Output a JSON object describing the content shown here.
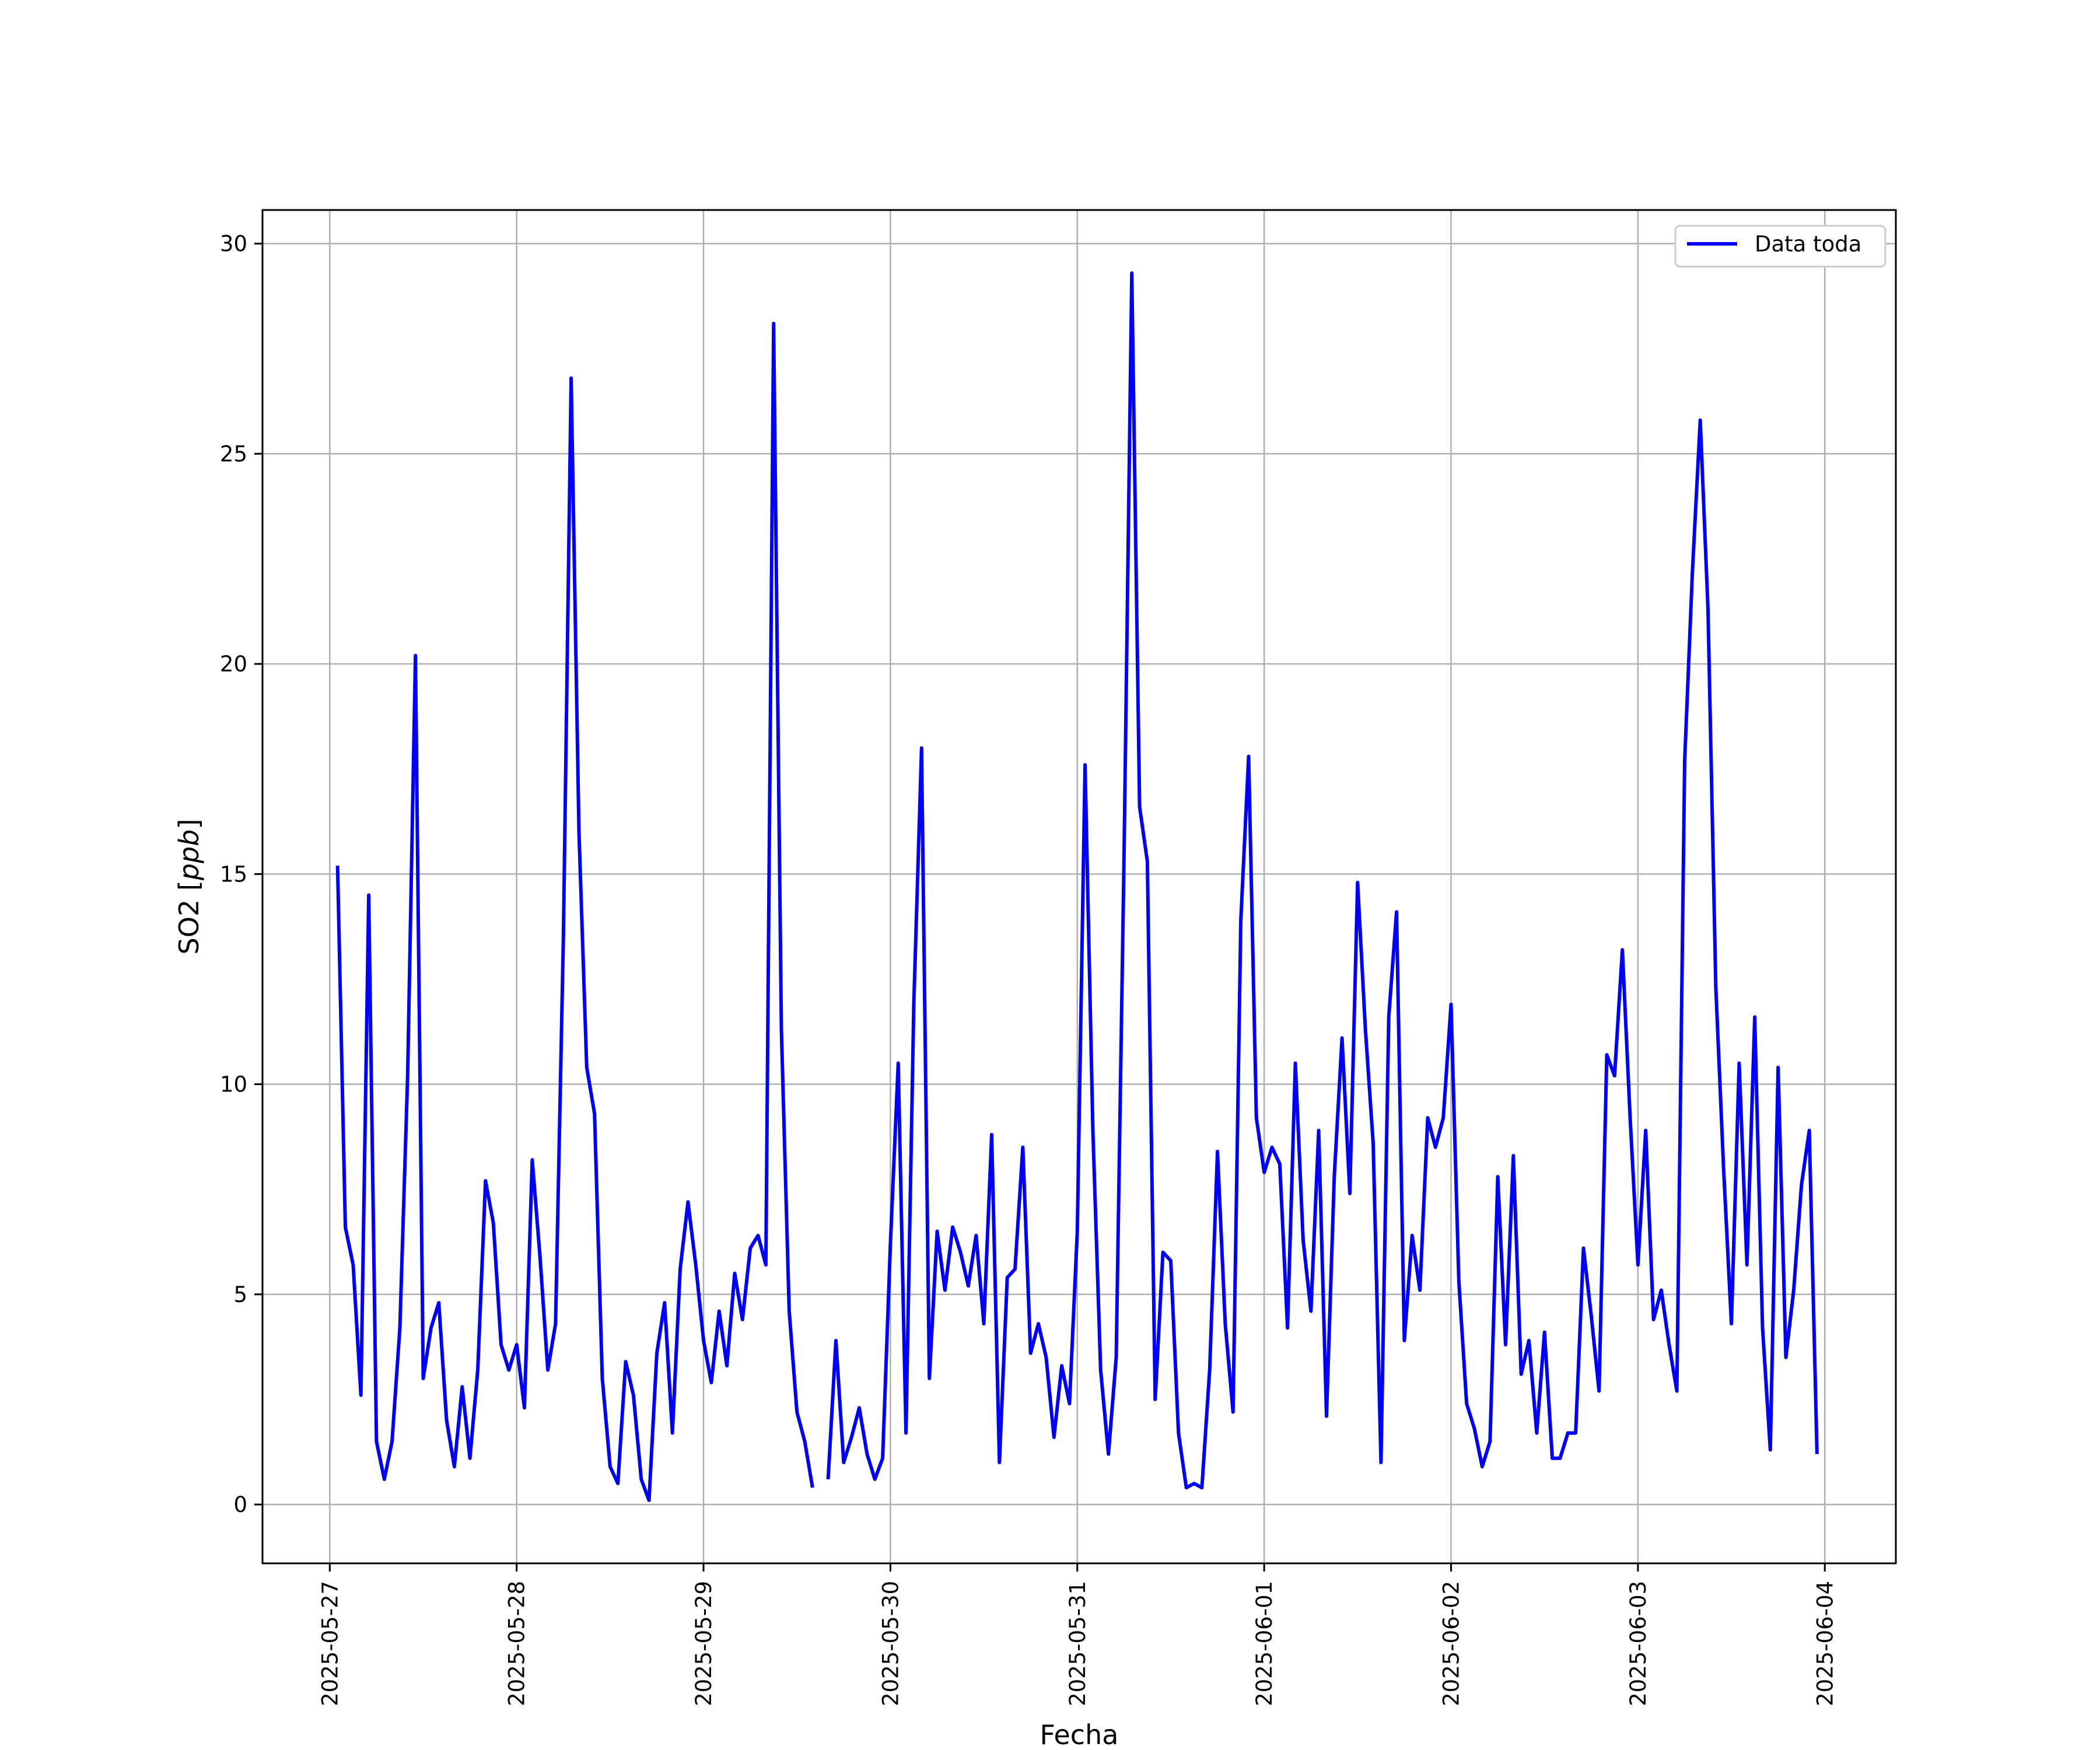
{
  "chart_data": {
    "type": "line",
    "title": "",
    "xlabel": "Fecha",
    "ylabel_main": "SO2",
    "ylabel_unit": "ppb",
    "x_ticks": [
      "2025-05-27",
      "2025-05-28",
      "2025-05-29",
      "2025-05-30",
      "2025-05-31",
      "2025-06-01",
      "2025-06-02",
      "2025-06-03",
      "2025-06-04"
    ],
    "y_ticks": [
      0,
      5,
      10,
      15,
      20,
      25,
      30
    ],
    "xlim_days": [
      -0.36,
      8.38
    ],
    "ylim": [
      -1.4,
      30.8
    ],
    "grid": true,
    "legend_position": "upper right",
    "series": [
      {
        "name": "Data toda",
        "color": "#0000ff",
        "start": "2025-05-27T01:00",
        "interval_hours": 1,
        "values": [
          15.2,
          6.6,
          5.7,
          2.6,
          14.5,
          1.5,
          0.6,
          1.5,
          4.2,
          10.2,
          20.2,
          3.0,
          4.2,
          4.8,
          2.0,
          0.9,
          2.8,
          1.1,
          3.2,
          7.7,
          6.7,
          3.8,
          3.2,
          3.8,
          2.3,
          8.2,
          5.9,
          3.2,
          4.3,
          13.5,
          26.8,
          16.0,
          10.4,
          9.3,
          3.0,
          0.9,
          0.5,
          3.4,
          2.6,
          0.6,
          0.1,
          3.6,
          4.8,
          1.7,
          5.6,
          7.2,
          5.7,
          3.9,
          2.9,
          4.6,
          3.3,
          5.5,
          4.4,
          6.1,
          6.4,
          5.7,
          28.1,
          11.3,
          4.6,
          2.2,
          1.5,
          0.4,
          null,
          0.6,
          3.9,
          1.0,
          1.6,
          2.3,
          1.2,
          0.6,
          1.1,
          6.2,
          10.5,
          1.7,
          11.9,
          18.0,
          3.0,
          6.5,
          5.1,
          6.6,
          6.0,
          5.2,
          6.4,
          4.3,
          8.8,
          1.0,
          5.4,
          5.6,
          8.5,
          3.6,
          4.3,
          3.5,
          1.6,
          3.3,
          2.4,
          6.5,
          17.6,
          8.9,
          3.2,
          1.2,
          3.5,
          15.4,
          29.3,
          16.6,
          15.3,
          2.5,
          6.0,
          5.8,
          1.7,
          0.4,
          0.5,
          0.4,
          3.2,
          8.4,
          4.3,
          2.2,
          13.9,
          17.8,
          9.2,
          7.9,
          8.5,
          8.1,
          4.2,
          10.5,
          6.3,
          4.6,
          8.9,
          2.1,
          7.8,
          11.1,
          7.4,
          14.8,
          11.3,
          8.6,
          1.0,
          11.6,
          14.1,
          3.9,
          6.4,
          5.1,
          9.2,
          8.5,
          9.2,
          11.9,
          5.3,
          2.4,
          1.8,
          0.9,
          1.5,
          7.8,
          3.8,
          8.3,
          3.1,
          3.9,
          1.7,
          4.1,
          1.1,
          1.1,
          1.7,
          1.7,
          6.1,
          4.5,
          2.7,
          10.7,
          10.2,
          13.2,
          9.2,
          5.7,
          8.9,
          4.4,
          5.1,
          3.8,
          2.7,
          17.7,
          22.2,
          25.8,
          21.3,
          12.3,
          8.0,
          4.3,
          10.5,
          5.7,
          11.6,
          4.2,
          1.3,
          10.4,
          3.5,
          5.1,
          7.6,
          8.9,
          1.2
        ]
      }
    ]
  }
}
